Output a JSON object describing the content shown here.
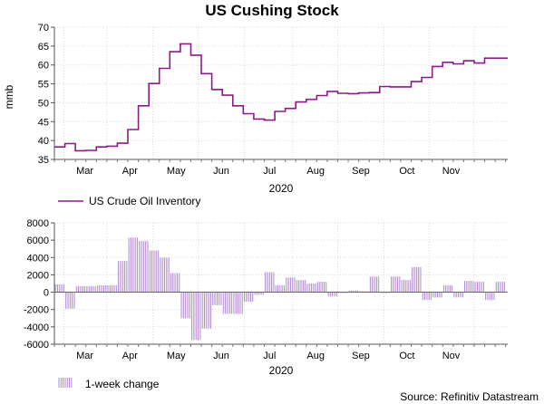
{
  "title": "US Cushing Stock",
  "source": "Source: Refinitiv Datastream",
  "chart_data": [
    {
      "type": "line",
      "ylabel": "mmb",
      "xlabel": "2020",
      "ylim": [
        35,
        70
      ],
      "yticks": [
        "35",
        "40",
        "45",
        "50",
        "55",
        "60",
        "65",
        "70"
      ],
      "x_tick_labels": [
        "Mar",
        "Apr",
        "May",
        "Jun",
        "Jul",
        "Aug",
        "Sep",
        "Oct",
        "Nov"
      ],
      "grid": true,
      "legend": "US Crude Oil Inventory",
      "color": "#8B1A8B",
      "x_weeks": [
        0,
        1,
        2,
        3,
        4,
        5,
        6,
        7,
        8,
        9,
        10,
        11,
        12,
        13,
        14,
        15,
        16,
        17,
        18,
        19,
        20,
        21,
        22,
        23,
        24,
        25,
        26,
        27,
        28,
        29,
        30,
        31,
        32,
        33,
        34,
        35,
        36,
        37,
        38,
        39,
        40,
        41,
        42,
        43
      ],
      "values": [
        38.3,
        39.2,
        37.3,
        37.4,
        38.3,
        38.5,
        39.3,
        42.9,
        49.2,
        55.1,
        59.1,
        63.5,
        65.6,
        62.6,
        57.7,
        53.5,
        52.0,
        49.2,
        47.1,
        45.7,
        45.4,
        47.7,
        48.5,
        50.2,
        50.9,
        51.9,
        53.0,
        52.5,
        52.4,
        52.6,
        52.7,
        54.3,
        54.2,
        54.2,
        55.6,
        56.7,
        59.6,
        60.7,
        60.3,
        61.1,
        60.5,
        61.8,
        61.8,
        61.8
      ]
    },
    {
      "type": "bar",
      "xlabel": "2020",
      "ylim": [
        -6000,
        8000
      ],
      "yticks": [
        "-6000",
        "-4000",
        "-2000",
        "0",
        "2000",
        "4000",
        "6000",
        "8000"
      ],
      "x_tick_labels": [
        "Mar",
        "Apr",
        "May",
        "Jun",
        "Jul",
        "Aug",
        "Sep",
        "Oct",
        "Nov"
      ],
      "grid": true,
      "legend": "1-week change",
      "color": "#9F8FD0",
      "x_weeks": [
        1,
        2,
        3,
        4,
        5,
        6,
        7,
        8,
        9,
        10,
        11,
        12,
        13,
        14,
        15,
        16,
        17,
        18,
        19,
        20,
        21,
        22,
        23,
        24,
        25,
        26,
        27,
        28,
        29,
        30,
        31,
        32,
        33,
        34,
        35,
        36,
        37,
        38,
        39,
        40,
        41,
        42,
        43
      ],
      "values": [
        900,
        -1900,
        700,
        700,
        800,
        800,
        3600,
        6300,
        5900,
        4800,
        4000,
        2200,
        -3000,
        -5500,
        -4200,
        -1500,
        -2500,
        -2500,
        -1100,
        -300,
        2300,
        800,
        1700,
        1400,
        1000,
        1200,
        -500,
        -100,
        200,
        100,
        1800,
        -100,
        1800,
        1400,
        2900,
        -900,
        -600,
        800,
        -600,
        1300,
        1200,
        -900,
        1200
      ]
    }
  ]
}
